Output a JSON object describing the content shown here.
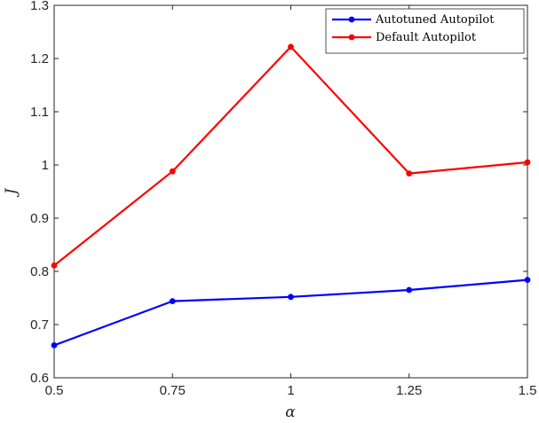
{
  "chart_data": {
    "type": "line",
    "title": "",
    "xlabel": "α",
    "ylabel": "J",
    "x": [
      0.5,
      0.75,
      1,
      1.25,
      1.5
    ],
    "xticks": [
      "0.5",
      "0.75",
      "1",
      "1.25",
      "1.5"
    ],
    "yticks": [
      "0.6",
      "0.7",
      "0.8",
      "0.9",
      "1",
      "1.1",
      "1.2",
      "1.3"
    ],
    "xlim": [
      0.5,
      1.5
    ],
    "ylim": [
      0.6,
      1.3
    ],
    "grid": false,
    "legend_position": "top-right",
    "series": [
      {
        "name": "Autotuned Autopilot",
        "color": "#0000ff",
        "values": [
          0.661,
          0.744,
          0.752,
          0.765,
          0.784
        ]
      },
      {
        "name": "Default Autopilot",
        "color": "#ff0000",
        "values": [
          0.811,
          0.988,
          1.222,
          0.984,
          1.005
        ]
      }
    ]
  }
}
